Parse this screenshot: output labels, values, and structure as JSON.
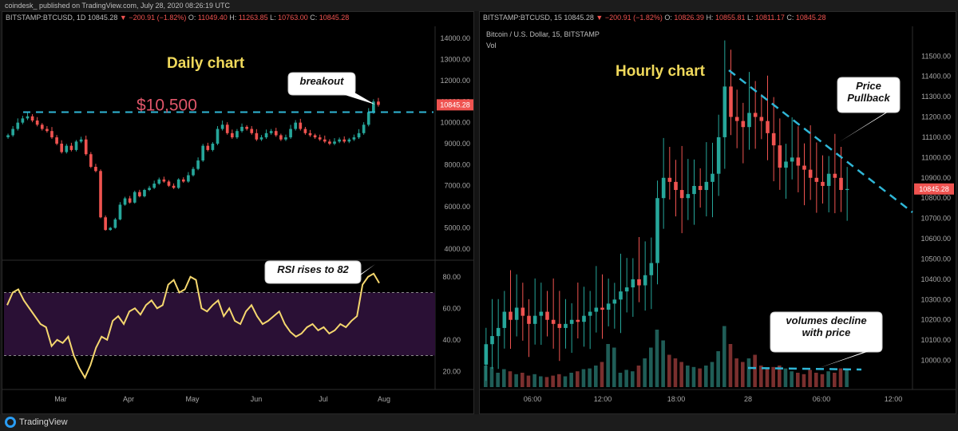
{
  "header": {
    "publisher": "coindesk_ published on TradingView.com, July 28, 2020 08:26:19 UTC"
  },
  "footer": {
    "brand": "TradingView"
  },
  "colors": {
    "up": "#26a69a",
    "down": "#ef5350",
    "annotation": "#f0d95b",
    "dashed": "#2fb6d6",
    "rsi_line": "#f5d76e",
    "rsi_band": "#2a1035",
    "price_tag": "#ef5350"
  },
  "chart_data": [
    {
      "type": "candlestick",
      "panel": "left-price",
      "symbol_line": {
        "symbol": "BITSTAMP:BTCUSD, 1D",
        "last": "10845.28",
        "change": "−200.91 (−1.82%)",
        "o": "11049.40",
        "h": "11263.85",
        "l": "10763.00",
        "c": "10845.28"
      },
      "title": "Daily chart",
      "ylim": [
        3500,
        14500
      ],
      "y_ticks": [
        "14000.00",
        "13000.00",
        "12000.00",
        "11000.00",
        "10000.00",
        "9000.00",
        "8000.00",
        "7000.00",
        "6000.00",
        "5000.00",
        "4000.00"
      ],
      "x_ticks": [
        "Mar",
        "Apr",
        "May",
        "Jun",
        "Jul",
        "Aug"
      ],
      "price_tag": "10845.28",
      "level": 10500,
      "level_label": "$10,500",
      "callout": "breakout",
      "closes_approx": [
        9400,
        9700,
        10000,
        10200,
        10300,
        10100,
        9900,
        9700,
        9600,
        9300,
        9000,
        8600,
        8900,
        8700,
        9100,
        9200,
        8500,
        7900,
        7700,
        5500,
        4900,
        5000,
        5400,
        6100,
        6400,
        6200,
        6700,
        6500,
        6800,
        6900,
        7100,
        7300,
        7200,
        7000,
        6900,
        7300,
        7200,
        7500,
        7800,
        8200,
        8900,
        8700,
        9000,
        9700,
        9900,
        9500,
        9300,
        9600,
        9800,
        9700,
        9500,
        9200,
        9300,
        9500,
        9600,
        9400,
        9200,
        9300,
        9700,
        10000,
        9700,
        9500,
        9400,
        9300,
        9200,
        9100,
        9000,
        9100,
        9200,
        9100,
        9200,
        9300,
        9500,
        9900,
        10500,
        11000,
        10845
      ]
    },
    {
      "type": "line",
      "panel": "left-rsi",
      "callout": "RSI rises to 82",
      "ylim": [
        10,
        90
      ],
      "y_ticks": [
        "80.00",
        "60.00",
        "40.00",
        "20.00"
      ],
      "band": [
        30,
        70
      ],
      "values_approx": [
        62,
        70,
        72,
        65,
        60,
        55,
        50,
        48,
        36,
        40,
        38,
        42,
        30,
        22,
        16,
        24,
        35,
        42,
        40,
        52,
        55,
        50,
        58,
        60,
        56,
        62,
        65,
        60,
        62,
        75,
        78,
        70,
        72,
        80,
        78,
        60,
        58,
        62,
        65,
        55,
        60,
        52,
        50,
        58,
        62,
        55,
        50,
        52,
        55,
        58,
        50,
        45,
        42,
        44,
        48,
        50,
        46,
        48,
        44,
        46,
        50,
        48,
        52,
        55,
        75,
        80,
        82,
        76
      ]
    },
    {
      "type": "candlestick",
      "panel": "right",
      "symbol_line": {
        "symbol": "BITSTAMP:BTCUSD, 15",
        "last": "10845.28",
        "change": "−200.91 (−1.82%)",
        "o": "10826.39",
        "h": "10855.81",
        "l": "10811.17",
        "c": "10845.28"
      },
      "subtitle": "Bitcoin / U.S. Dollar, 15, BITSTAMP",
      "vol_label": "Vol",
      "title": "Hourly chart",
      "ylim": [
        9900,
        11560
      ],
      "y_ticks": [
        "11500.00",
        "11400.00",
        "11300.00",
        "11200.00",
        "11100.00",
        "11000.00",
        "10900.00",
        "10800.00",
        "10700.00",
        "10600.00",
        "10500.00",
        "10400.00",
        "10300.00",
        "10200.00",
        "10100.00",
        "10000.00"
      ],
      "x_ticks": [
        "06:00",
        "12:00",
        "18:00",
        "28",
        "06:00",
        "12:00"
      ],
      "callouts": [
        "Price Pullback",
        "volumes decline with price"
      ],
      "closes_approx": [
        10080,
        10120,
        10160,
        10240,
        10200,
        10260,
        10220,
        10180,
        10220,
        10240,
        10200,
        10180,
        10160,
        10180,
        10200,
        10190,
        10220,
        10240,
        10260,
        10250,
        10280,
        10300,
        10340,
        10360,
        10400,
        10370,
        10420,
        10480,
        10800,
        10900,
        10880,
        10840,
        10800,
        10820,
        10860,
        10840,
        10880,
        10920,
        11100,
        11350,
        11200,
        11180,
        11150,
        11220,
        11200,
        11180,
        11120,
        11060,
        10950,
        10980,
        11000,
        10960,
        10940,
        10900,
        10880,
        10860,
        10920,
        10900,
        10840,
        10845
      ],
      "volumes_approx": [
        30,
        28,
        20,
        25,
        22,
        18,
        20,
        16,
        18,
        15,
        14,
        16,
        18,
        15,
        20,
        22,
        25,
        26,
        30,
        35,
        60,
        55,
        20,
        24,
        22,
        30,
        40,
        55,
        80,
        65,
        45,
        40,
        35,
        30,
        28,
        26,
        30,
        35,
        50,
        85,
        60,
        40,
        35,
        40,
        45,
        30,
        25,
        28,
        30,
        26,
        22,
        20,
        18,
        24,
        20,
        18,
        22,
        20,
        26,
        24
      ]
    }
  ]
}
